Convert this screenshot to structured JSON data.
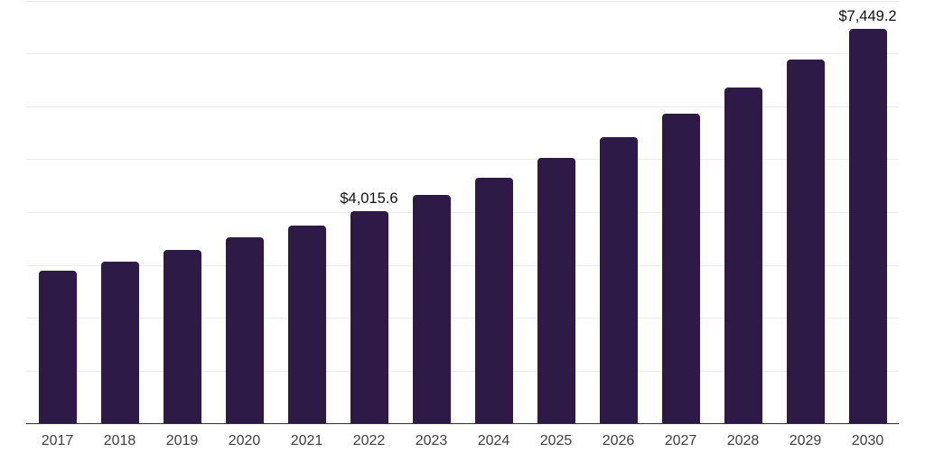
{
  "chart_data": {
    "type": "bar",
    "title": "",
    "xlabel": "",
    "ylabel": "",
    "categories": [
      "2017",
      "2018",
      "2019",
      "2020",
      "2021",
      "2022",
      "2023",
      "2024",
      "2025",
      "2026",
      "2027",
      "2028",
      "2029",
      "2030"
    ],
    "values": [
      2890,
      3060,
      3280,
      3520,
      3740,
      4015.6,
      4320,
      4640,
      5010,
      5410,
      5850,
      6350,
      6870,
      7449.2
    ],
    "data_labels": [
      "",
      "",
      "",
      "",
      "",
      "$4,015.6",
      "",
      "",
      "",
      "",
      "",
      "",
      "",
      "$7,449.2"
    ],
    "ylim": [
      0,
      8000
    ],
    "gridline_interval": 1000,
    "grid": "horizontal",
    "legend": "none",
    "y_axis_tick_labels_visible": false
  },
  "colors": {
    "bar": "#2e1a47",
    "gridline": "#ededed",
    "axis_line": "#333333",
    "tick_label": "#3f3f3f",
    "data_label": "#111111",
    "background": "#ffffff"
  }
}
